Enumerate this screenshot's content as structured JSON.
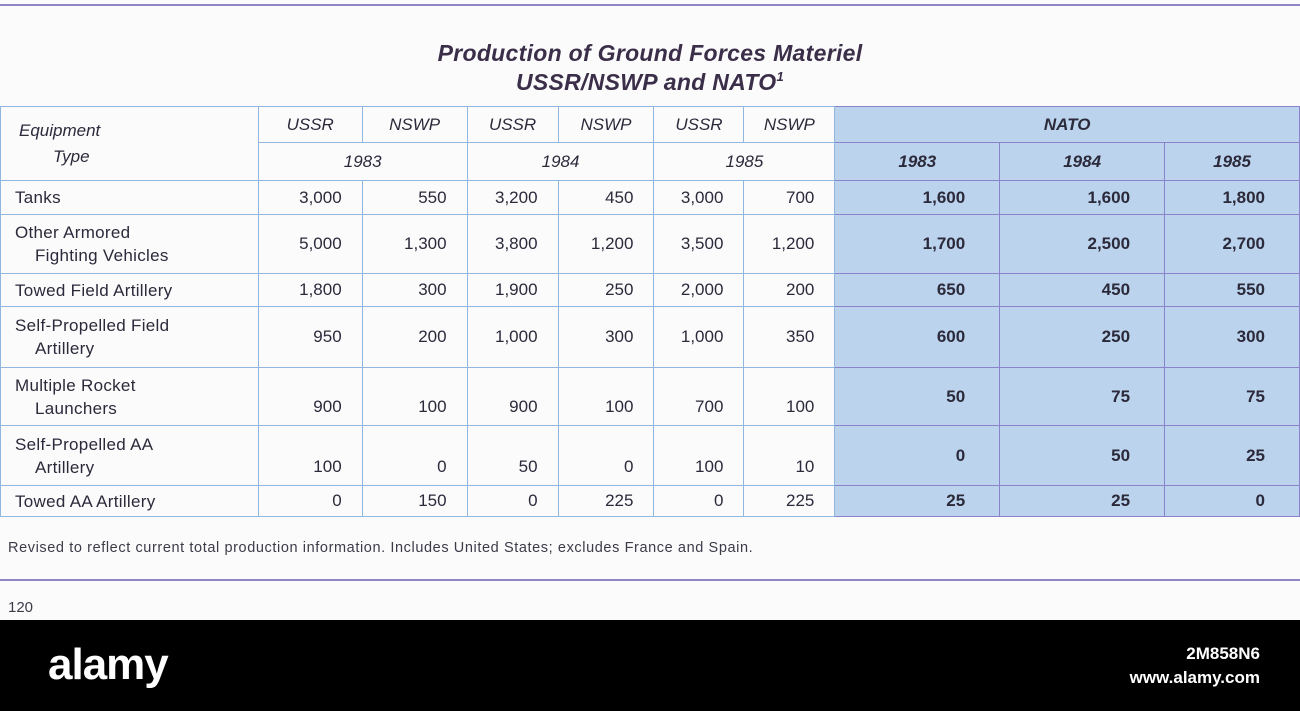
{
  "title": {
    "line1": "Production of Ground Forces Materiel",
    "line2": "USSR/NSWP and NATO",
    "footnote_mark": "1"
  },
  "header": {
    "equipment_line1": "Equipment",
    "equipment_line2": "Type",
    "col_labels": [
      "USSR",
      "NSWP",
      "USSR",
      "NSWP",
      "USSR",
      "NSWP"
    ],
    "years": [
      "1983",
      "1984",
      "1985"
    ],
    "nato_label": "NATO",
    "nato_years": [
      "1983",
      "1984",
      "1985"
    ]
  },
  "rows": [
    {
      "label1": "Tanks",
      "label2": "",
      "values": [
        "3,000",
        "550",
        "3,200",
        "450",
        "3,000",
        "700"
      ],
      "nato": [
        "1,600",
        "1,600",
        "1,800"
      ]
    },
    {
      "label1": "Other Armored",
      "label2": "Fighting Vehicles",
      "values": [
        "5,000",
        "1,300",
        "3,800",
        "1,200",
        "3,500",
        "1,200"
      ],
      "nato": [
        "1,700",
        "2,500",
        "2,700"
      ]
    },
    {
      "label1": "Towed Field Artillery",
      "label2": "",
      "values": [
        "1,800",
        "300",
        "1,900",
        "250",
        "2,000",
        "200"
      ],
      "nato": [
        "650",
        "450",
        "550"
      ]
    },
    {
      "label1": "Self-Propelled Field",
      "label2": "Artillery",
      "values": [
        "950",
        "200",
        "1,000",
        "300",
        "1,000",
        "350"
      ],
      "nato": [
        "600",
        "250",
        "300"
      ]
    },
    {
      "label1": "Multiple Rocket",
      "label2": "Launchers",
      "values": [
        "900",
        "100",
        "900",
        "100",
        "700",
        "100"
      ],
      "nato": [
        "50",
        "75",
        "75"
      ]
    },
    {
      "label1": "Self-Propelled AA",
      "label2": "Artillery",
      "values": [
        "100",
        "0",
        "50",
        "0",
        "100",
        "10"
      ],
      "nato": [
        "0",
        "50",
        "25"
      ]
    },
    {
      "label1": "Towed AA Artillery",
      "label2": "",
      "values": [
        "0",
        "150",
        "0",
        "225",
        "0",
        "225"
      ],
      "nato": [
        "25",
        "25",
        "0"
      ]
    }
  ],
  "footnote": "Revised to reflect current total production information. Includes United States; excludes France and Spain.",
  "page_number": "120",
  "watermark": {
    "logo": "alamy",
    "image_id": "2M858N6",
    "site": "www.alamy.com"
  }
}
